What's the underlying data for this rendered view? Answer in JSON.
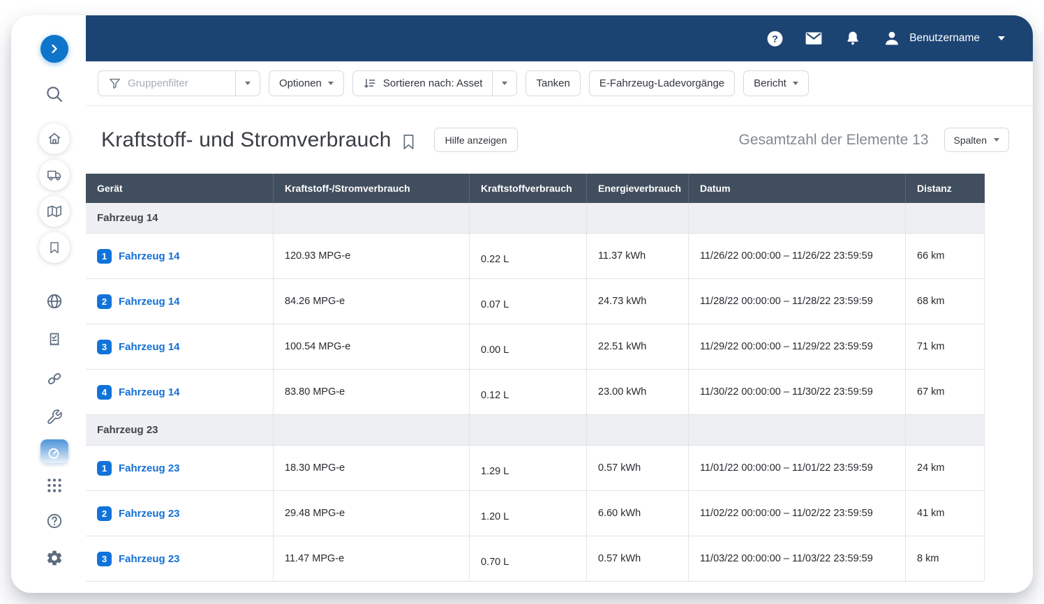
{
  "colors": {
    "navbar": "#1c4473",
    "accent_blue": "#0f75cb",
    "table_header": "#414e5e",
    "link_blue": "#1470d4",
    "badge_blue": "#1173da",
    "group_row": "#edeff2"
  },
  "header": {
    "user_name": "Benutzername"
  },
  "toolbar": {
    "group_filter_placeholder": "Gruppenfilter",
    "options_label": "Optionen",
    "sort_label": "Sortieren nach: Asset",
    "fuel_label": "Tanken",
    "ev_charging_label": "E-Fahrzeug-Ladevorgänge",
    "report_label": "Bericht"
  },
  "page": {
    "title": "Kraftstoff- und Stromverbrauch",
    "help_button": "Hilfe anzeigen",
    "total_label": "Gesamtzahl der Elemente 13",
    "columns_button": "Spalten"
  },
  "table": {
    "columns": [
      "Gerät",
      "Kraftstoff-/Stromverbrauch",
      "Kraftstoffverbrauch",
      "Energieverbrauch",
      "Datum",
      "Distanz"
    ],
    "groups": [
      {
        "label": "Fahrzeug 14",
        "rows": [
          {
            "badge": "1",
            "device": "Fahrzeug 14",
            "consumption": "120.93 MPG-e",
            "fuel": "0.22 L",
            "energy": "11.37 kWh",
            "date": "11/26/22 00:00:00 – 11/26/22 23:59:59",
            "distance": "66 km"
          },
          {
            "badge": "2",
            "device": "Fahrzeug 14",
            "consumption": "84.26 MPG-e",
            "fuel": "0.07 L",
            "energy": "24.73 kWh",
            "date": "11/28/22 00:00:00 – 11/28/22 23:59:59",
            "distance": "68 km"
          },
          {
            "badge": "3",
            "device": "Fahrzeug 14",
            "consumption": "100.54 MPG-e",
            "fuel": "0.00 L",
            "energy": "22.51 kWh",
            "date": "11/29/22 00:00:00 – 11/29/22 23:59:59",
            "distance": "71 km"
          },
          {
            "badge": "4",
            "device": "Fahrzeug 14",
            "consumption": "83.80 MPG-e",
            "fuel": "0.12 L",
            "energy": "23.00 kWh",
            "date": "11/30/22 00:00:00 – 11/30/22 23:59:59",
            "distance": "67 km"
          }
        ]
      },
      {
        "label": "Fahrzeug 23",
        "rows": [
          {
            "badge": "1",
            "device": "Fahrzeug 23",
            "consumption": "18.30 MPG-e",
            "fuel": "1.29 L",
            "energy": "0.57 kWh",
            "date": "11/01/22 00:00:00 – 11/01/22 23:59:59",
            "distance": "24 km"
          },
          {
            "badge": "2",
            "device": "Fahrzeug 23",
            "consumption": "29.48 MPG-e",
            "fuel": "1.20 L",
            "energy": "6.60 kWh",
            "date": "11/02/22 00:00:00 – 11/02/22 23:59:59",
            "distance": "41 km"
          },
          {
            "badge": "3",
            "device": "Fahrzeug 23",
            "consumption": "11.47 MPG-e",
            "fuel": "0.70 L",
            "energy": "0.57 kWh",
            "date": "11/03/22 00:00:00 – 11/03/22 23:59:59",
            "distance": "8 km"
          }
        ]
      }
    ]
  }
}
